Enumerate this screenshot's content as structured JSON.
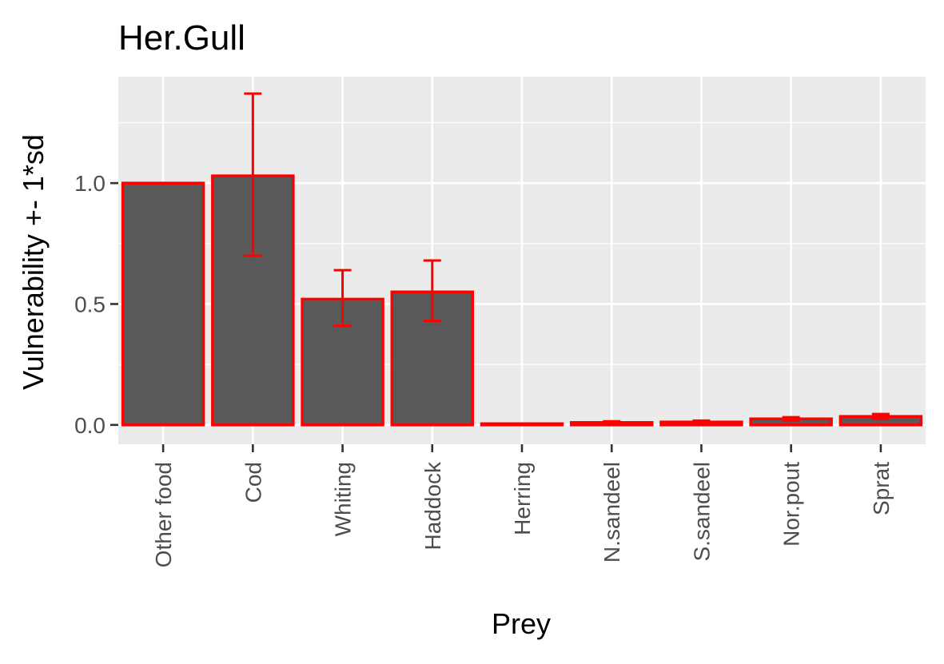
{
  "chart_data": {
    "type": "bar",
    "title": "Her.Gull",
    "xlabel": "Prey",
    "ylabel": "Vulnerability +- 1*sd",
    "categories": [
      "Other food",
      "Cod",
      "Whiting",
      "Haddock",
      "Herring",
      "N.sandeel",
      "S.sandeel",
      "Nor.pout",
      "Sprat"
    ],
    "values": [
      1.0,
      1.03,
      0.52,
      0.55,
      0.005,
      0.01,
      0.012,
      0.025,
      0.035
    ],
    "sd_upper": [
      1.0,
      1.37,
      0.64,
      0.68,
      0.006,
      0.015,
      0.018,
      0.032,
      0.045
    ],
    "sd_lower": [
      1.0,
      0.7,
      0.41,
      0.43,
      0.004,
      0.005,
      0.006,
      0.018,
      0.025
    ],
    "ylim": [
      -0.08,
      1.44
    ],
    "yticks": [
      0.0,
      0.5,
      1.0
    ],
    "ytick_labels": [
      "0.0",
      "0.5",
      "1.0"
    ],
    "grid": true,
    "colors": {
      "panel_background": "#ebebeb",
      "grid_major": "#ffffff",
      "bar_fill": "#595959",
      "bar_outline": "#ff0000",
      "error_bar": "#ff0000",
      "tick_mark": "#333333",
      "tick_text": "#4d4d4d"
    }
  }
}
